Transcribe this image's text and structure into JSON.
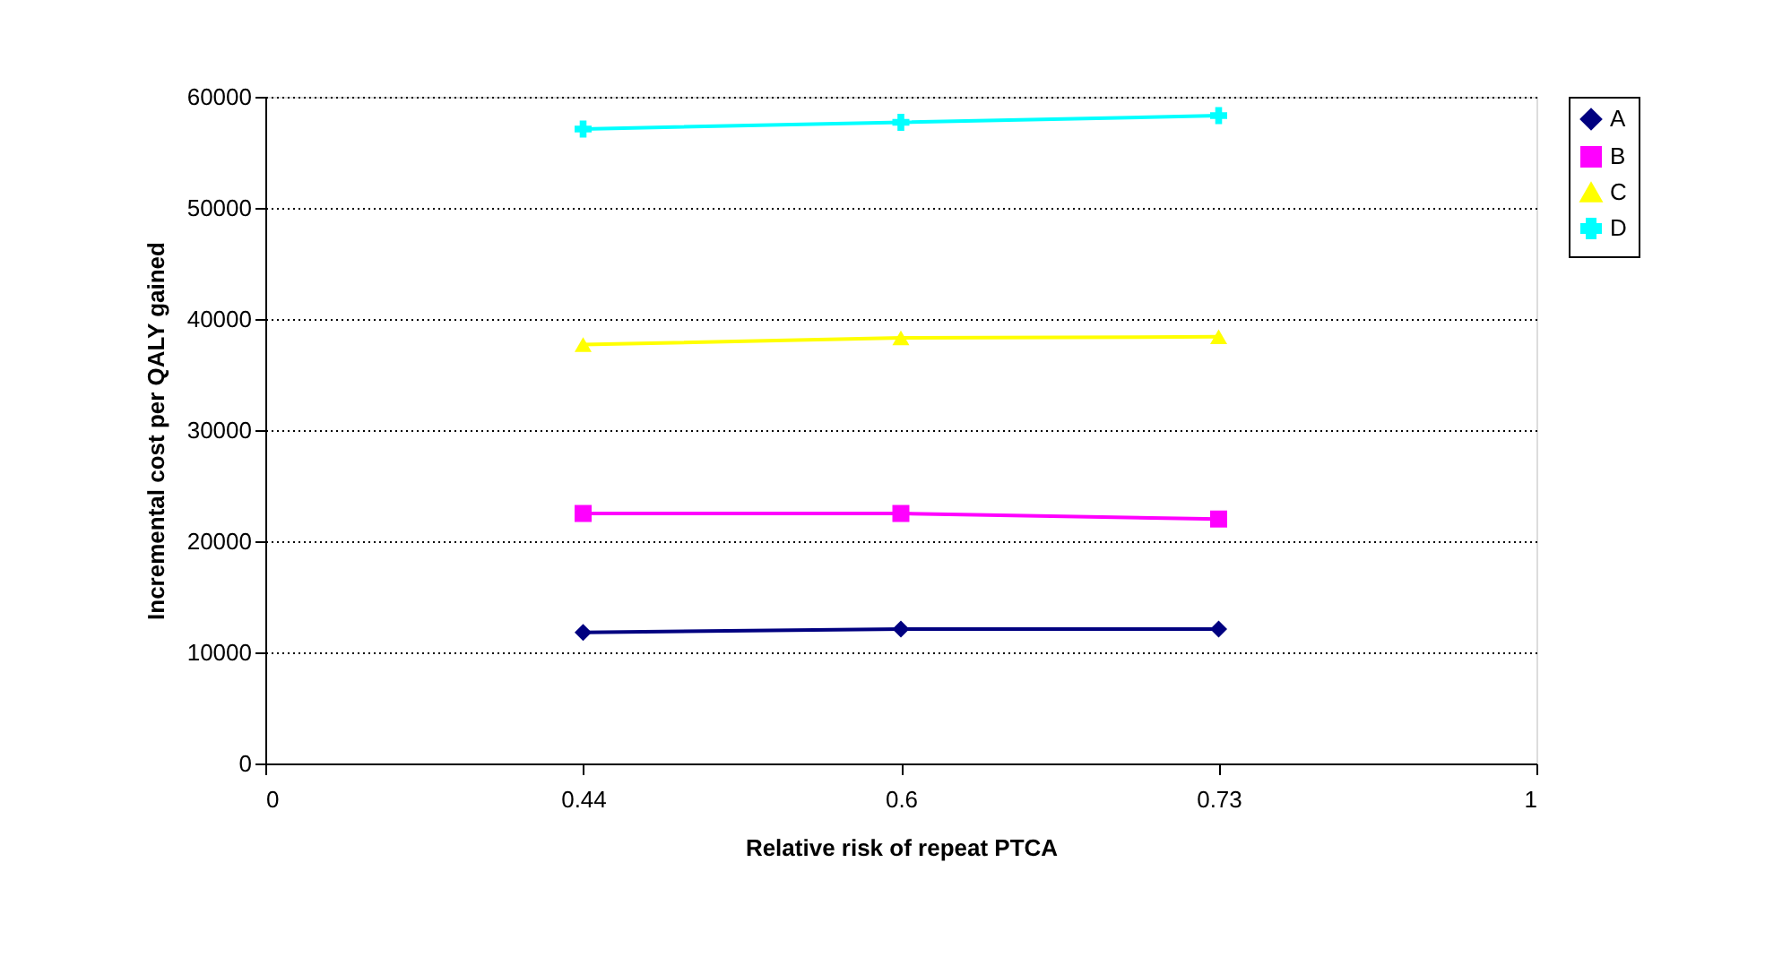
{
  "chart_data": {
    "type": "line",
    "xlabel": "Relative risk of repeat PTCA",
    "ylabel": "Incremental cost per QALY gained",
    "categories": [
      "0",
      "0.44",
      "0.6",
      "0.73",
      "1"
    ],
    "series": [
      {
        "name": "A",
        "color": "#000080",
        "marker": "diamond",
        "values": [
          null,
          11800,
          12100,
          12100,
          null
        ]
      },
      {
        "name": "B",
        "color": "#ff00ff",
        "marker": "square",
        "values": [
          null,
          22500,
          22500,
          22000,
          null
        ]
      },
      {
        "name": "C",
        "color": "#ffff00",
        "marker": "triangle",
        "values": [
          null,
          37700,
          38300,
          38400,
          null
        ]
      },
      {
        "name": "D",
        "color": "#00ffff",
        "marker": "cross",
        "values": [
          null,
          57100,
          57700,
          58300,
          null
        ]
      }
    ],
    "ylim": [
      0,
      60000
    ],
    "yticks": [
      0,
      10000,
      20000,
      30000,
      40000,
      50000,
      60000
    ],
    "grid": "y",
    "legend": "right",
    "line_style": "solid"
  }
}
